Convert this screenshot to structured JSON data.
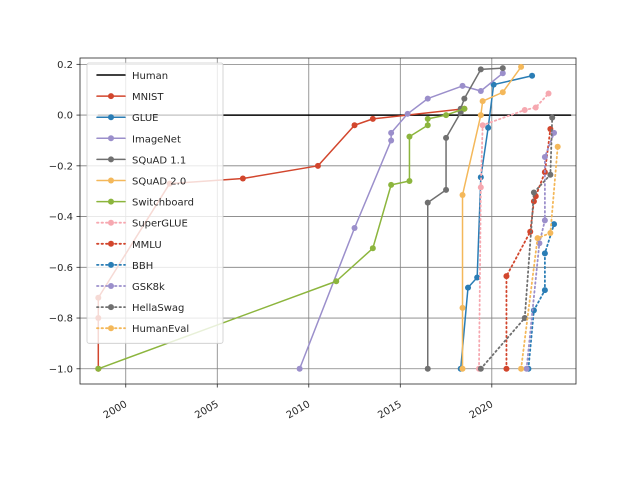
{
  "chart_data": {
    "type": "line",
    "title": "",
    "xlabel": "",
    "ylabel": "",
    "xlim": [
      1997.5,
      2024.6
    ],
    "ylim": [
      -1.06,
      0.225
    ],
    "grid": true,
    "legend_position": "top-left",
    "xticks": [
      2000,
      2005,
      2010,
      2015,
      2020
    ],
    "xtick_labels": [
      "2000",
      "2005",
      "2010",
      "2015",
      "2020"
    ],
    "yticks": [
      0.2,
      0.0,
      -0.2,
      -0.4,
      -0.6,
      -0.8,
      -1.0
    ],
    "ytick_labels": [
      "0.2",
      "0.0",
      "−0.2",
      "−0.4",
      "−0.6",
      "−0.8",
      "−1.0"
    ],
    "series": [
      {
        "name": "Human",
        "color": "#000000",
        "style": "solid",
        "marker": false,
        "x": [
          1998.5,
          2024.3
        ],
        "y": [
          0.0,
          0.0
        ]
      },
      {
        "name": "MNIST",
        "color": "#d2462d",
        "style": "solid",
        "marker": true,
        "x": [
          1998.5,
          1998.5,
          1998.5,
          2002.4,
          2006.4,
          2010.5,
          2012.5,
          2013.5,
          2018.5
        ],
        "y": [
          -1.0,
          -0.8,
          -0.72,
          -0.27,
          -0.25,
          -0.2,
          -0.04,
          -0.015,
          0.025
        ]
      },
      {
        "name": "GLUE",
        "color": "#2a7db5",
        "style": "solid",
        "marker": true,
        "x": [
          2018.3,
          2018.7,
          2019.2,
          2019.4,
          2019.8,
          2020.1,
          2022.2
        ],
        "y": [
          -1.0,
          -0.68,
          -0.64,
          -0.245,
          -0.05,
          0.12,
          0.155
        ]
      },
      {
        "name": "ImageNet",
        "color": "#9b8fcb",
        "style": "solid",
        "marker": true,
        "x": [
          2009.5,
          2012.5,
          2014.5,
          2014.5,
          2015.4,
          2016.5,
          2018.4,
          2019.4,
          2020.6
        ],
        "y": [
          -1.0,
          -0.445,
          -0.1,
          -0.07,
          0.005,
          0.065,
          0.115,
          0.095,
          0.165
        ]
      },
      {
        "name": "SQuAD 1.1",
        "color": "#707070",
        "style": "solid",
        "marker": true,
        "x": [
          2016.5,
          2016.5,
          2017.5,
          2017.5,
          2018.3,
          2018.3,
          2018.5,
          2019.4,
          2020.6
        ],
        "y": [
          -1.0,
          -0.345,
          -0.295,
          -0.09,
          0.01,
          0.025,
          0.065,
          0.18,
          0.185
        ]
      },
      {
        "name": "SQuAD 2.0",
        "color": "#f4b85a",
        "style": "solid",
        "marker": true,
        "x": [
          2018.4,
          2018.4,
          2018.4,
          2019.4,
          2019.5,
          2020.6,
          2021.6
        ],
        "y": [
          -1.0,
          -0.76,
          -0.315,
          0.0,
          0.055,
          0.09,
          0.19
        ]
      },
      {
        "name": "Switchboard",
        "color": "#8cb53d",
        "style": "solid",
        "marker": true,
        "x": [
          1998.5,
          2011.5,
          2013.5,
          2014.5,
          2015.5,
          2015.5,
          2016.5,
          2016.5,
          2017.5,
          2018.5
        ],
        "y": [
          -1.0,
          -0.655,
          -0.525,
          -0.275,
          -0.26,
          -0.085,
          -0.04,
          -0.015,
          0.0,
          0.025
        ]
      },
      {
        "name": "SuperGLUE",
        "color": "#f6a8b0",
        "style": "dotted",
        "marker": true,
        "x": [
          2019.3,
          2019.4,
          2019.5,
          2021.8,
          2022.4,
          2023.1
        ],
        "y": [
          -1.0,
          -0.285,
          -0.04,
          0.02,
          0.03,
          0.085
        ]
      },
      {
        "name": "MMLU",
        "color": "#d2462d",
        "style": "dotted",
        "marker": true,
        "x": [
          2020.8,
          2020.8,
          2022.1,
          2022.3,
          2022.4,
          2022.9,
          2023.2
        ],
        "y": [
          -1.0,
          -0.635,
          -0.46,
          -0.34,
          -0.32,
          -0.225,
          -0.055
        ]
      },
      {
        "name": "BBH",
        "color": "#2a7db5",
        "style": "dotted",
        "marker": true,
        "x": [
          2022.0,
          2022.3,
          2022.9,
          2022.9,
          2023.4
        ],
        "y": [
          -1.0,
          -0.77,
          -0.69,
          -0.545,
          -0.43
        ]
      },
      {
        "name": "GSK8k",
        "color": "#9b8fcb",
        "style": "dotted",
        "marker": true,
        "x": [
          2021.9,
          2022.6,
          2022.9,
          2022.9,
          2023.4
        ],
        "y": [
          -1.0,
          -0.505,
          -0.415,
          -0.165,
          -0.07
        ]
      },
      {
        "name": "HellaSwag",
        "color": "#707070",
        "style": "dotted",
        "marker": true,
        "x": [
          2019.4,
          2021.8,
          2022.3,
          2023.2,
          2023.3
        ],
        "y": [
          -1.0,
          -0.8,
          -0.305,
          -0.235,
          -0.01
        ]
      },
      {
        "name": "HumanEval",
        "color": "#f4b85a",
        "style": "dotted",
        "marker": true,
        "x": [
          2021.6,
          2022.5,
          2023.2,
          2023.6
        ],
        "y": [
          -1.0,
          -0.485,
          -0.465,
          -0.125
        ]
      }
    ]
  }
}
